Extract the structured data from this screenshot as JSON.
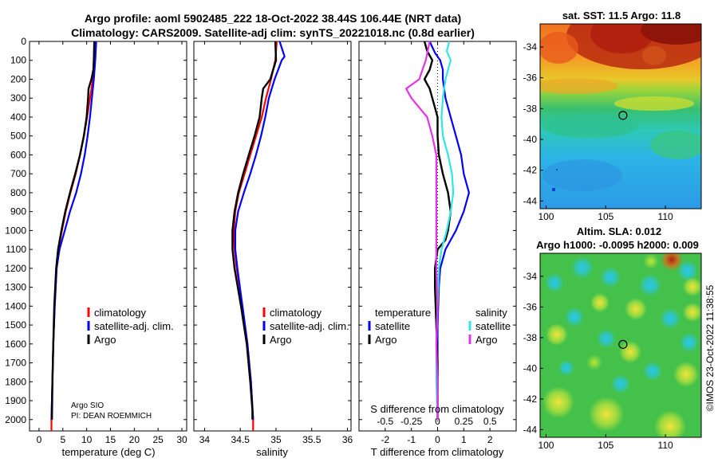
{
  "title": {
    "line1": "Argo profile: aoml 5902485_222 18-Oct-2022 38.44S 106.44E (NRT data)",
    "line2": "Climatology: CARS2009. Satellite-adj clim: synTS_20221018.nc (0.8d earlier)"
  },
  "credits": {
    "line1": "Argo SIO",
    "line2": "PI: DEAN ROEMMICH"
  },
  "footer": "©IMOS 23-Oct-2022 11:38:55",
  "colors": {
    "climatology": "#ff0000",
    "satellite": "#0000ff",
    "argo": "#000000",
    "sat_salinity": "#33e6e6",
    "argo_salinity": "#e633e6"
  },
  "chart_data": [
    {
      "type": "line",
      "panel": "temperature",
      "xlabel": "temperature (deg C)",
      "ylabel": "",
      "xlim": [
        -2,
        31
      ],
      "ylim": [
        2060,
        0
      ],
      "xticks": [
        0,
        5,
        10,
        15,
        20,
        25,
        30
      ],
      "yticks": [
        0,
        100,
        200,
        300,
        400,
        500,
        600,
        700,
        800,
        900,
        1000,
        1100,
        1200,
        1300,
        1400,
        1500,
        1600,
        1700,
        1800,
        1900,
        2000
      ],
      "legend": [
        "climatology",
        "satellite-adj. clim.",
        "Argo"
      ],
      "series": [
        {
          "name": "climatology",
          "color": "#ff0000",
          "y": [
            0,
            100,
            200,
            300,
            400,
            500,
            600,
            700,
            800,
            900,
            1000,
            1100,
            1200,
            1400,
            1600,
            1800,
            2000,
            2060
          ],
          "x": [
            11.8,
            11.7,
            11.3,
            10.7,
            10.1,
            9.4,
            8.6,
            7.7,
            6.6,
            5.6,
            4.8,
            4.1,
            3.7,
            3.3,
            3.0,
            2.8,
            2.6,
            2.6
          ]
        },
        {
          "name": "satellite-adj. clim.",
          "color": "#0000ff",
          "y": [
            0,
            100,
            200,
            300,
            400,
            500,
            600,
            700,
            800,
            900,
            1000,
            1100,
            1200,
            1400,
            1600,
            1800,
            2000
          ],
          "x": [
            12.0,
            11.8,
            11.5,
            11.1,
            10.7,
            10.2,
            9.6,
            8.8,
            7.8,
            6.5,
            5.4,
            4.3,
            3.7,
            3.3,
            3.0,
            2.8,
            2.6
          ]
        },
        {
          "name": "Argo",
          "color": "#000000",
          "y": [
            0,
            100,
            150,
            200,
            250,
            300,
            400,
            500,
            600,
            700,
            800,
            900,
            1000,
            1100,
            1200,
            1400,
            1600,
            1800,
            2000
          ],
          "x": [
            11.6,
            11.5,
            11.4,
            11.0,
            10.4,
            10.3,
            10.0,
            9.4,
            8.6,
            7.6,
            6.5,
            5.5,
            4.7,
            4.0,
            3.6,
            3.2,
            3.0,
            2.8,
            2.7
          ]
        }
      ]
    },
    {
      "type": "line",
      "panel": "salinity",
      "xlabel": "salinity",
      "ylabel": "",
      "xlim": [
        33.85,
        36.05
      ],
      "ylim": [
        2060,
        0
      ],
      "xticks": [
        34,
        34.5,
        35,
        35.5,
        36
      ],
      "legend": [
        "climatology",
        "satellite-adj. clim.",
        "Argo"
      ],
      "series": [
        {
          "name": "climatology",
          "color": "#ff0000",
          "y": [
            0,
            100,
            200,
            300,
            400,
            500,
            600,
            700,
            800,
            900,
            1000,
            1100,
            1200,
            1400,
            1600,
            1800,
            2000,
            2060
          ],
          "x": [
            35.01,
            34.99,
            34.93,
            34.86,
            34.8,
            34.72,
            34.64,
            34.56,
            34.48,
            34.43,
            34.41,
            34.42,
            34.45,
            34.53,
            34.6,
            34.65,
            34.68,
            34.68
          ]
        },
        {
          "name": "satellite-adj. clim.",
          "color": "#0000ff",
          "y": [
            0,
            80,
            100,
            200,
            300,
            400,
            500,
            600,
            700,
            800,
            900,
            1000,
            1100,
            1200,
            1400,
            1600,
            1800,
            2000
          ],
          "x": [
            35.05,
            35.12,
            35.08,
            34.98,
            34.9,
            34.85,
            34.79,
            34.72,
            34.64,
            34.55,
            34.47,
            34.43,
            34.43,
            34.46,
            34.53,
            34.6,
            34.65,
            34.68
          ]
        },
        {
          "name": "Argo",
          "color": "#000000",
          "y": [
            0,
            100,
            200,
            250,
            300,
            400,
            500,
            600,
            700,
            800,
            900,
            1000,
            1100,
            1200,
            1400,
            1600,
            1800,
            1950,
            2000
          ],
          "x": [
            34.99,
            35.0,
            34.92,
            34.82,
            34.8,
            34.77,
            34.7,
            34.62,
            34.54,
            34.47,
            34.42,
            34.39,
            34.39,
            34.42,
            34.51,
            34.59,
            34.64,
            34.67,
            34.67
          ]
        }
      ]
    },
    {
      "type": "line",
      "panel": "difference",
      "xlabel": "T difference from climatology",
      "xlabel2": "S difference from climatology",
      "ylabel": "",
      "xlim": [
        -3,
        3
      ],
      "ylim": [
        2060,
        0
      ],
      "xticks": [
        -2,
        -1,
        0,
        1,
        2
      ],
      "x2ticks": [
        -0.5,
        -0.25,
        0,
        0.25,
        0.5
      ],
      "x2ticklabels": [
        "-0.5",
        "-0.25",
        "0",
        "0.25",
        "0.5"
      ],
      "legend_group1": {
        "header": "temperature",
        "items": [
          "satellite",
          "Argo"
        ]
      },
      "legend_group2": {
        "header": "salinity",
        "items": [
          "satellite",
          "Argo"
        ]
      },
      "series": [
        {
          "name": "temperature satellite",
          "color": "#0000ff",
          "y": [
            0,
            60,
            100,
            150,
            200,
            300,
            400,
            500,
            600,
            700,
            800,
            900,
            1000,
            1100,
            1200,
            1300,
            1500,
            1700,
            1900,
            2000
          ],
          "x": [
            -0.3,
            -0.1,
            0.1,
            0.2,
            0.2,
            0.3,
            0.5,
            0.7,
            0.9,
            1.0,
            1.2,
            1.0,
            0.7,
            0.3,
            0.1,
            0.05,
            0.0,
            0.0,
            0.0,
            0.0
          ]
        },
        {
          "name": "temperature Argo",
          "color": "#000000",
          "y": [
            0,
            50,
            100,
            150,
            200,
            250,
            300,
            400,
            500,
            600,
            700,
            800,
            900,
            1000,
            1050,
            1100,
            1200,
            1300,
            1500,
            1700,
            1900,
            2000
          ],
          "x": [
            -0.5,
            -0.4,
            -0.2,
            -0.3,
            -0.5,
            -0.3,
            -0.2,
            0.0,
            0.0,
            0.05,
            0.2,
            0.4,
            0.5,
            0.4,
            0.3,
            0.0,
            -0.1,
            -0.1,
            -0.05,
            0.0,
            0.0,
            0.0
          ]
        },
        {
          "name": "salinity satellite",
          "color": "#33e6e6",
          "y": [
            0,
            50,
            100,
            150,
            200,
            300,
            400,
            500,
            600,
            700,
            800,
            900,
            1000,
            1100,
            1200,
            1400,
            1600,
            1800,
            2000
          ],
          "x": [
            0.45,
            0.35,
            0.5,
            0.4,
            0.3,
            0.2,
            0.15,
            0.2,
            0.4,
            0.55,
            0.6,
            0.5,
            0.35,
            0.15,
            0.05,
            0.0,
            -0.05,
            -0.05,
            0.0
          ]
        },
        {
          "name": "salinity Argo",
          "color": "#e633e6",
          "y": [
            0,
            100,
            200,
            250,
            300,
            400,
            500,
            600,
            800,
            1000,
            1200,
            1400,
            1600,
            1800,
            2000
          ],
          "x": [
            -0.3,
            -0.45,
            -0.7,
            -1.2,
            -1.0,
            -0.4,
            -0.2,
            -0.05,
            -0.05,
            -0.05,
            -0.05,
            0.0,
            -0.05,
            0.0,
            0.0
          ]
        }
      ]
    },
    {
      "type": "heatmap",
      "panel": "sst_map",
      "title": "sat. SST: 11.5 Argo: 11.8",
      "xlim": [
        99.5,
        113
      ],
      "ylim": [
        -44.5,
        -32.5
      ],
      "xticks": [
        100,
        105,
        110
      ],
      "yticks": [
        -34,
        -36,
        -38,
        -40,
        -42,
        -44
      ],
      "marker": {
        "lon": 106.44,
        "lat": -38.44
      }
    },
    {
      "type": "heatmap",
      "panel": "sla_map",
      "title": "Altim. SLA: 0.012",
      "subtitle": "Argo h1000: -0.0095 h2000: 0.009",
      "xlim": [
        99.5,
        113
      ],
      "ylim": [
        -44.5,
        -32.5
      ],
      "xticks": [
        100,
        105,
        110
      ],
      "yticks": [
        -34,
        -36,
        -38,
        -40,
        -42,
        -44
      ],
      "marker": {
        "lon": 106.44,
        "lat": -38.44
      }
    }
  ]
}
